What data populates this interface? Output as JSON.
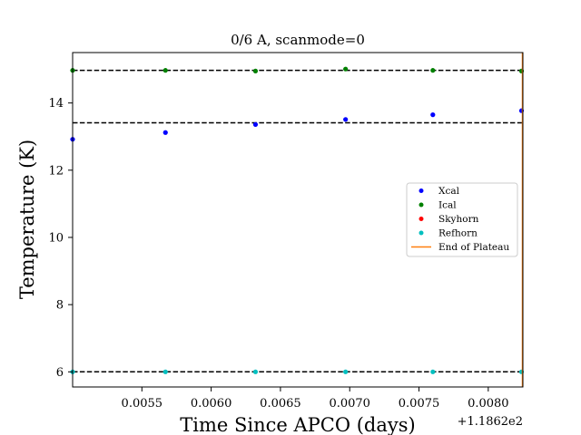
{
  "chart_data": {
    "type": "scatter",
    "title": "0/6 A, scanmode=0",
    "xlabel": "Time Since APCO (days)",
    "ylabel": "Temperature (K)",
    "x_offset_label": "+1.1862e2",
    "xlim": [
      0.005,
      0.00825
    ],
    "ylim": [
      5.55,
      15.5
    ],
    "xticks": [
      0.0055,
      0.006,
      0.0065,
      0.007,
      0.0075,
      0.008
    ],
    "xtick_labels": [
      "0.0055",
      "0.0060",
      "0.0065",
      "0.0070",
      "0.0075",
      "0.0080"
    ],
    "yticks": [
      6,
      8,
      10,
      12,
      14
    ],
    "ytick_labels": [
      "6",
      "8",
      "10",
      "12",
      "14"
    ],
    "grid": false,
    "legend_position": "center-right",
    "series": [
      {
        "name": "Xcal",
        "color": "#0000ff",
        "x": [
          0.005,
          0.00567,
          0.00632,
          0.00697,
          0.0076,
          0.00824
        ],
        "y": [
          12.92,
          13.12,
          13.36,
          13.51,
          13.65,
          13.77
        ]
      },
      {
        "name": "Ical",
        "color": "#008000",
        "x": [
          0.005,
          0.00567,
          0.00632,
          0.00697,
          0.0076,
          0.00824
        ],
        "y": [
          14.97,
          14.97,
          14.95,
          15.01,
          14.97,
          14.95
        ]
      },
      {
        "name": "Skyhorn",
        "color": "#ff0000",
        "x": [],
        "y": []
      },
      {
        "name": "Refhorn",
        "color": "#00bfbf",
        "x": [
          0.005,
          0.00567,
          0.00632,
          0.00697,
          0.0076,
          0.00824
        ],
        "y": [
          6.0,
          6.0,
          6.0,
          6.0,
          6.0,
          6.0
        ]
      }
    ],
    "end_of_plateau": {
      "name": "End of Plateau",
      "color": "#ff7f0e",
      "x": 0.00825
    },
    "reference_lines": [
      14.97,
      13.41,
      6.0
    ]
  }
}
